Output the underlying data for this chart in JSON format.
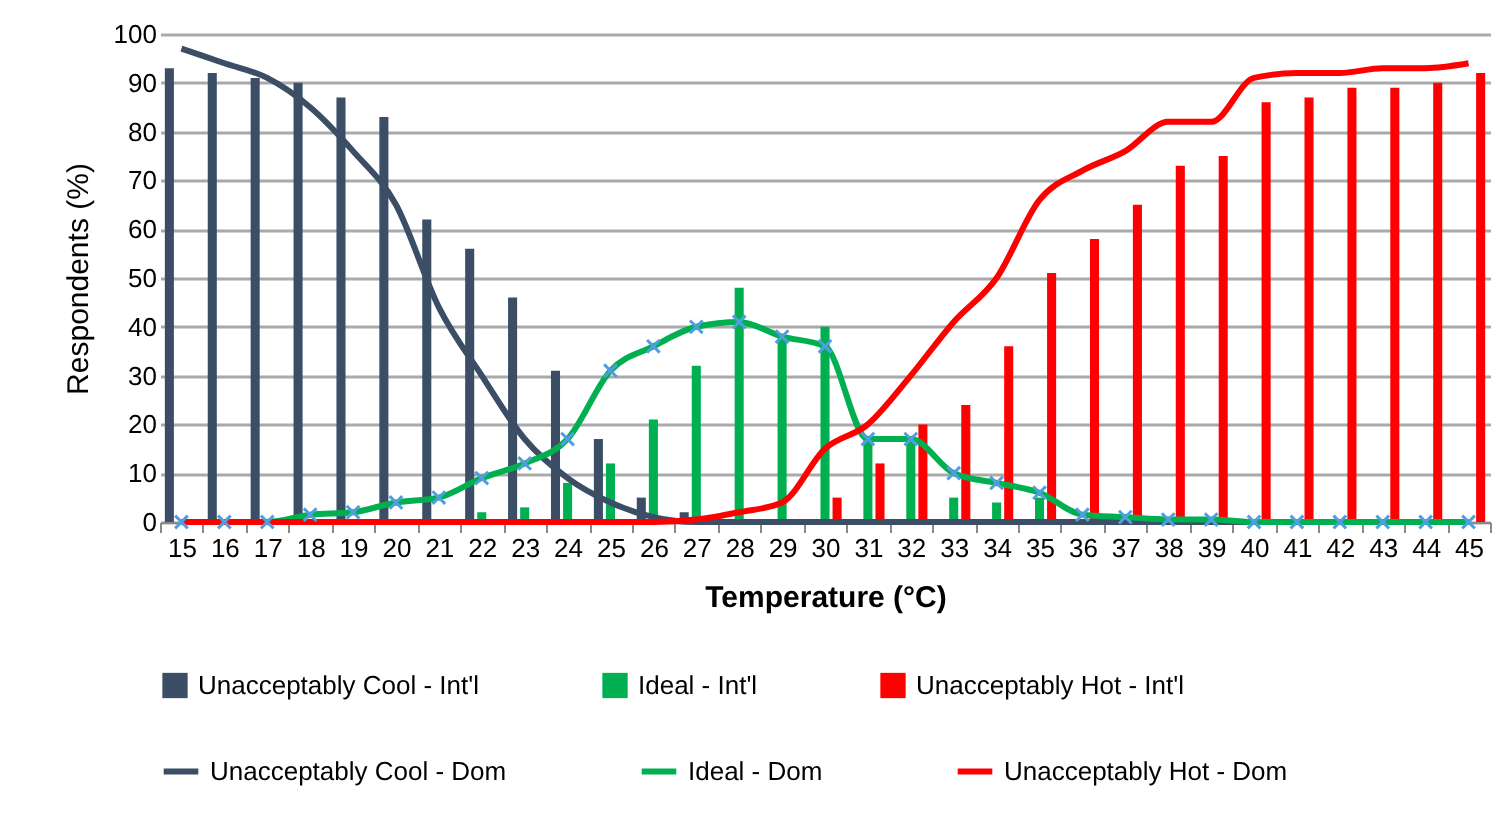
{
  "chart_data": {
    "type": "bar",
    "xlabel": "Temperature (°C)",
    "ylabel": "Respondents (%)",
    "categories": [
      "15",
      "16",
      "17",
      "18",
      "19",
      "20",
      "21",
      "22",
      "23",
      "24",
      "25",
      "26",
      "27",
      "28",
      "29",
      "30",
      "31",
      "32",
      "33",
      "34",
      "35",
      "36",
      "37",
      "38",
      "39",
      "40",
      "41",
      "42",
      "43",
      "44",
      "45"
    ],
    "ylim": [
      0,
      100
    ],
    "yticks": [
      0,
      10,
      20,
      30,
      40,
      50,
      60,
      70,
      80,
      90,
      100
    ],
    "grid": "y",
    "legend": "bottom",
    "series": [
      {
        "name": "Unacceptably Cool - Int'l",
        "color": "#3b4e66",
        "values": [
          93,
          92,
          91,
          90,
          87,
          83,
          62,
          56,
          46,
          31,
          17,
          5,
          2,
          0,
          0,
          0,
          0,
          0,
          0,
          0,
          0,
          0,
          0,
          0,
          0,
          0,
          0,
          0,
          0,
          0,
          0
        ]
      },
      {
        "name": "Ideal - Int'l",
        "color": "#00b050",
        "values": [
          0,
          0,
          0,
          0,
          0,
          0,
          null,
          2,
          3,
          8,
          12,
          21,
          32,
          48,
          38,
          40,
          17,
          17,
          5,
          4,
          5,
          null,
          0,
          0,
          0,
          0,
          0,
          0,
          0,
          0,
          0
        ]
      },
      {
        "name": "Unacceptably Hot - Int'l",
        "color": "#ff0000",
        "values": [
          0,
          0,
          0,
          0,
          0,
          0,
          0,
          0,
          0,
          0,
          0,
          0,
          0,
          0,
          0,
          5,
          12,
          20,
          24,
          36,
          51,
          58,
          65,
          73,
          75,
          86,
          87,
          89,
          89,
          90,
          92
        ]
      },
      {
        "name": "Unacceptably Cool - Dom",
        "type": "line",
        "color": "#3b4e66",
        "marker": "none",
        "values": [
          97,
          94,
          91,
          85,
          76,
          65,
          44,
          30,
          17,
          9,
          4,
          1,
          0,
          0,
          0,
          0,
          0,
          0,
          0,
          0,
          0,
          0,
          0,
          0,
          0,
          0,
          0,
          0,
          0,
          0,
          0
        ]
      },
      {
        "name": "Ideal - Dom",
        "type": "line",
        "color": "#00b050",
        "marker": "cross",
        "values": [
          0,
          0,
          0,
          1.5,
          2,
          4,
          5,
          9,
          12,
          17,
          31,
          36,
          40,
          41,
          38,
          36,
          17,
          17,
          10,
          8,
          6,
          1.5,
          1,
          0.5,
          0.5,
          0,
          0,
          0,
          0,
          0,
          0
        ]
      },
      {
        "name": "Unacceptably Hot - Dom",
        "type": "line",
        "color": "#ff0000",
        "marker": "none",
        "values": [
          0,
          0,
          0,
          0,
          0,
          0,
          0,
          0,
          0,
          0,
          0,
          0,
          0.5,
          2,
          4,
          15,
          20,
          30,
          41,
          50,
          66,
          72,
          76,
          82,
          82,
          91,
          92,
          92,
          93,
          93,
          94
        ]
      }
    ]
  }
}
